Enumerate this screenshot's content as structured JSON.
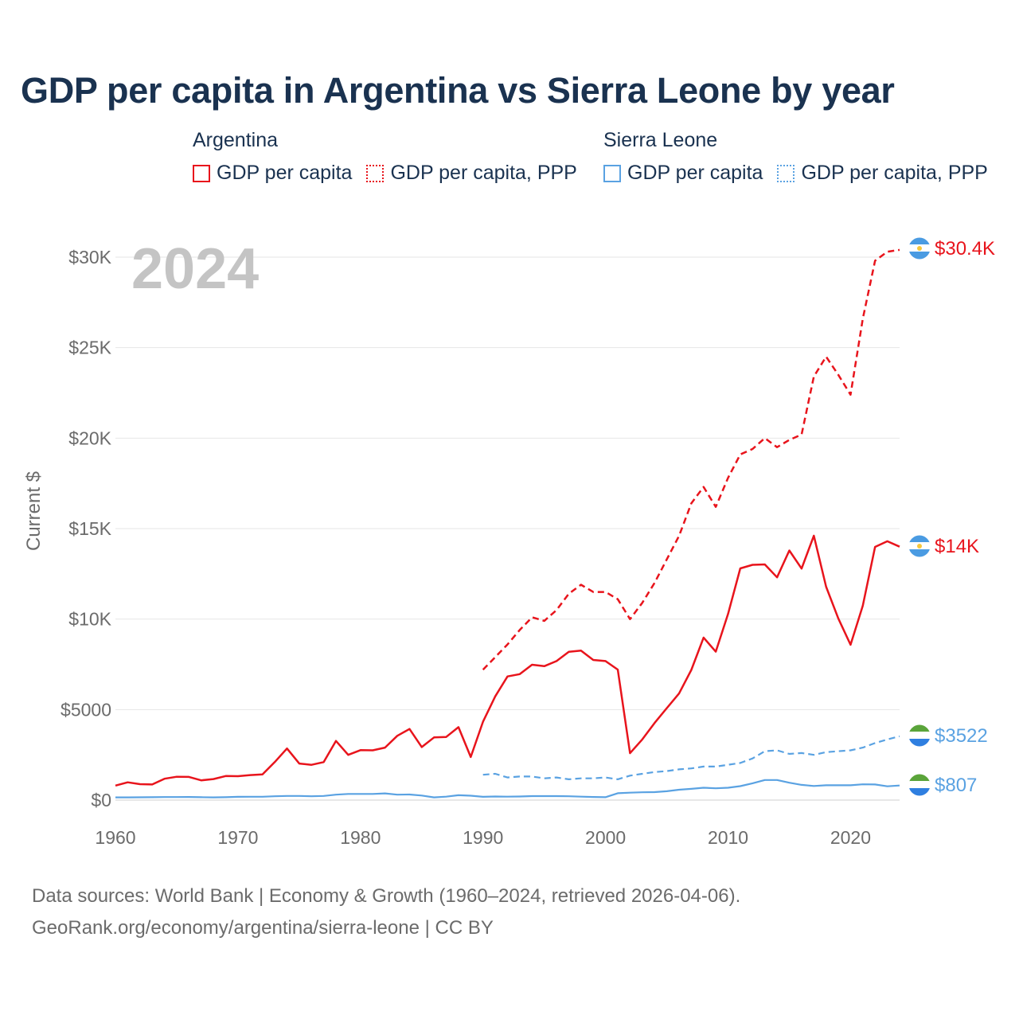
{
  "title": "GDP per capita in Argentina vs Sierra Leone by year",
  "legend": {
    "groups": [
      {
        "name": "Argentina",
        "items": [
          {
            "label": "GDP per capita",
            "color": "#e8141c",
            "style": "solid"
          },
          {
            "label": "GDP per capita, PPP",
            "color": "#e8141c",
            "style": "dotted"
          }
        ]
      },
      {
        "name": "Sierra Leone",
        "items": [
          {
            "label": "GDP per capita",
            "color": "#5aa2e2",
            "style": "solid"
          },
          {
            "label": "GDP per capita, PPP",
            "color": "#5aa2e2",
            "style": "dotted"
          }
        ]
      }
    ]
  },
  "chart_data": {
    "type": "line",
    "year_label": "2024",
    "ylabel": "Current $",
    "xlabel": "",
    "xlim": [
      1960,
      2024
    ],
    "ylim": [
      0,
      30000
    ],
    "x_ticks": [
      1960,
      1970,
      1980,
      1990,
      2000,
      2010,
      2020
    ],
    "x_tick_labels": [
      "1960",
      "1970",
      "1980",
      "1990",
      "2000",
      "2010",
      "2020"
    ],
    "y_ticks": [
      0,
      5000,
      10000,
      15000,
      20000,
      25000,
      30000
    ],
    "y_tick_labels": [
      "$0",
      "$5000",
      "$10K",
      "$15K",
      "$20K",
      "$25K",
      "$30K"
    ],
    "grid": true,
    "series": [
      {
        "name": "Argentina GDP per capita",
        "color": "#e8141c",
        "dash": "solid",
        "end_label": "$14K",
        "x": [
          1960,
          1961,
          1962,
          1963,
          1964,
          1965,
          1966,
          1967,
          1968,
          1969,
          1970,
          1971,
          1972,
          1973,
          1974,
          1975,
          1976,
          1977,
          1978,
          1979,
          1980,
          1981,
          1982,
          1983,
          1984,
          1985,
          1986,
          1987,
          1988,
          1989,
          1990,
          1991,
          1992,
          1993,
          1994,
          1995,
          1996,
          1997,
          1998,
          1999,
          2000,
          2001,
          2002,
          2003,
          2004,
          2005,
          2006,
          2007,
          2008,
          2009,
          2010,
          2011,
          2012,
          2013,
          2014,
          2015,
          2016,
          2017,
          2018,
          2019,
          2020,
          2021,
          2022,
          2023,
          2024
        ],
        "values": [
          800,
          980,
          880,
          860,
          1180,
          1290,
          1280,
          1090,
          1160,
          1330,
          1320,
          1380,
          1420,
          2100,
          2850,
          2020,
          1950,
          2100,
          3270,
          2500,
          2760,
          2750,
          2900,
          3550,
          3930,
          2930,
          3460,
          3490,
          4030,
          2380,
          4330,
          5730,
          6830,
          6960,
          7480,
          7400,
          7680,
          8190,
          8260,
          7740,
          7680,
          7210,
          2590,
          3350,
          4260,
          5080,
          5890,
          7190,
          8980,
          8200,
          10280,
          12800,
          13000,
          13020,
          12310,
          13790,
          12790,
          14610,
          11790,
          10040,
          8580,
          10740,
          13990,
          14300,
          14000
        ]
      },
      {
        "name": "Argentina GDP per capita, PPP",
        "color": "#e8141c",
        "dash": "dashed",
        "end_label": "$30.4K",
        "x": [
          1990,
          1991,
          1992,
          1993,
          1994,
          1995,
          1996,
          1997,
          1998,
          1999,
          2000,
          2001,
          2002,
          2003,
          2004,
          2005,
          2006,
          2007,
          2008,
          2009,
          2010,
          2011,
          2012,
          2013,
          2014,
          2015,
          2016,
          2017,
          2018,
          2019,
          2020,
          2021,
          2022,
          2023,
          2024
        ],
        "values": [
          7200,
          7900,
          8600,
          9400,
          10100,
          9900,
          10500,
          11400,
          11900,
          11500,
          11500,
          11100,
          10000,
          10900,
          12000,
          13300,
          14600,
          16400,
          17300,
          16200,
          17800,
          19100,
          19400,
          20000,
          19500,
          19900,
          20200,
          23400,
          24500,
          23500,
          22400,
          26600,
          29800,
          30300,
          30400
        ]
      },
      {
        "name": "Sierra Leone GDP per capita",
        "color": "#5aa2e2",
        "dash": "solid",
        "end_label": "$807",
        "x": [
          1960,
          1961,
          1962,
          1963,
          1964,
          1965,
          1966,
          1967,
          1968,
          1969,
          1970,
          1971,
          1972,
          1973,
          1974,
          1975,
          1976,
          1977,
          1978,
          1979,
          1980,
          1981,
          1982,
          1983,
          1984,
          1985,
          1986,
          1987,
          1988,
          1989,
          1990,
          1991,
          1992,
          1993,
          1994,
          1995,
          1996,
          1997,
          1998,
          1999,
          2000,
          2001,
          2002,
          2003,
          2004,
          2005,
          2006,
          2007,
          2008,
          2009,
          2010,
          2011,
          2012,
          2013,
          2014,
          2015,
          2016,
          2017,
          2018,
          2019,
          2020,
          2021,
          2022,
          2023,
          2024
        ],
        "values": [
          150,
          150,
          155,
          160,
          165,
          165,
          170,
          160,
          150,
          160,
          180,
          185,
          185,
          210,
          230,
          230,
          210,
          230,
          300,
          340,
          340,
          340,
          370,
          300,
          310,
          250,
          150,
          190,
          270,
          240,
          180,
          200,
          190,
          200,
          220,
          220,
          220,
          210,
          190,
          170,
          160,
          380,
          410,
          430,
          440,
          490,
          570,
          620,
          680,
          650,
          680,
          770,
          930,
          1110,
          1110,
          960,
          840,
          780,
          820,
          820,
          820,
          870,
          860,
          760,
          807
        ]
      },
      {
        "name": "Sierra Leone GDP per capita, PPP",
        "color": "#5aa2e2",
        "dash": "dashed",
        "end_label": "$3522",
        "x": [
          1990,
          1991,
          1992,
          1993,
          1994,
          1995,
          1996,
          1997,
          1998,
          1999,
          2000,
          2001,
          2002,
          2003,
          2004,
          2005,
          2006,
          2007,
          2008,
          2009,
          2010,
          2011,
          2012,
          2013,
          2014,
          2015,
          2016,
          2017,
          2018,
          2019,
          2020,
          2021,
          2022,
          2023,
          2024
        ],
        "values": [
          1400,
          1450,
          1250,
          1300,
          1300,
          1200,
          1250,
          1150,
          1200,
          1200,
          1250,
          1150,
          1350,
          1450,
          1550,
          1600,
          1700,
          1750,
          1850,
          1850,
          1950,
          2050,
          2300,
          2700,
          2750,
          2550,
          2600,
          2500,
          2650,
          2700,
          2750,
          2900,
          3150,
          3350,
          3522
        ]
      }
    ]
  },
  "footer": {
    "line1": "Data sources: World Bank | Economy & Growth (1960–2024, retrieved 2026-04-06).",
    "line2": "GeoRank.org/economy/argentina/sierra-leone | CC BY"
  }
}
